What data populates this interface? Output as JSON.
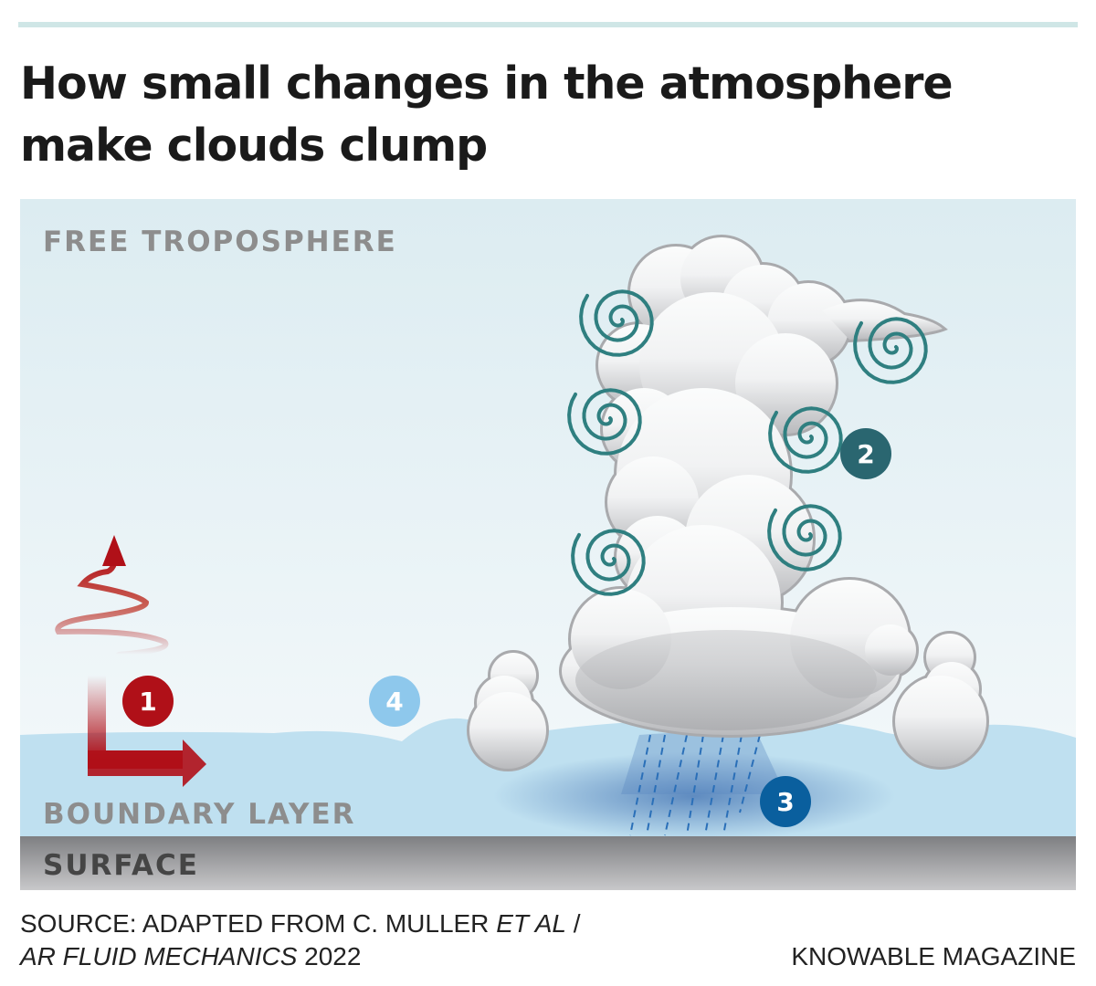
{
  "title": "How small changes in the atmosphere make clouds clump",
  "labels": {
    "free_troposphere": "FREE TROPOSPHERE",
    "boundary_layer": "BOUNDARY LAYER",
    "surface": "SURFACE"
  },
  "markers": [
    {
      "label": "1",
      "color": "#b01018"
    },
    {
      "label": "2",
      "color": "#2a6670"
    },
    {
      "label": "3",
      "color": "#0a5f9e"
    },
    {
      "label": "4",
      "color": "#8ec8ec"
    }
  ],
  "colors": {
    "sky_top": "#dcecf1",
    "sky_bottom": "#f3f8fa",
    "boundary_layer": "#bfe0f0",
    "surface": "#8a8a8c",
    "arrow": "#b01018",
    "swirl": "#2f7f80",
    "rain": "#2a6fb8"
  },
  "source": {
    "prefix": "SOURCE: ADAPTED FROM C. MULLER ",
    "etal": "ET AL",
    "sep": " /",
    "journal": "AR FLUID MECHANICS",
    "year": " 2022"
  },
  "brand": "KNOWABLE MAGAZINE"
}
